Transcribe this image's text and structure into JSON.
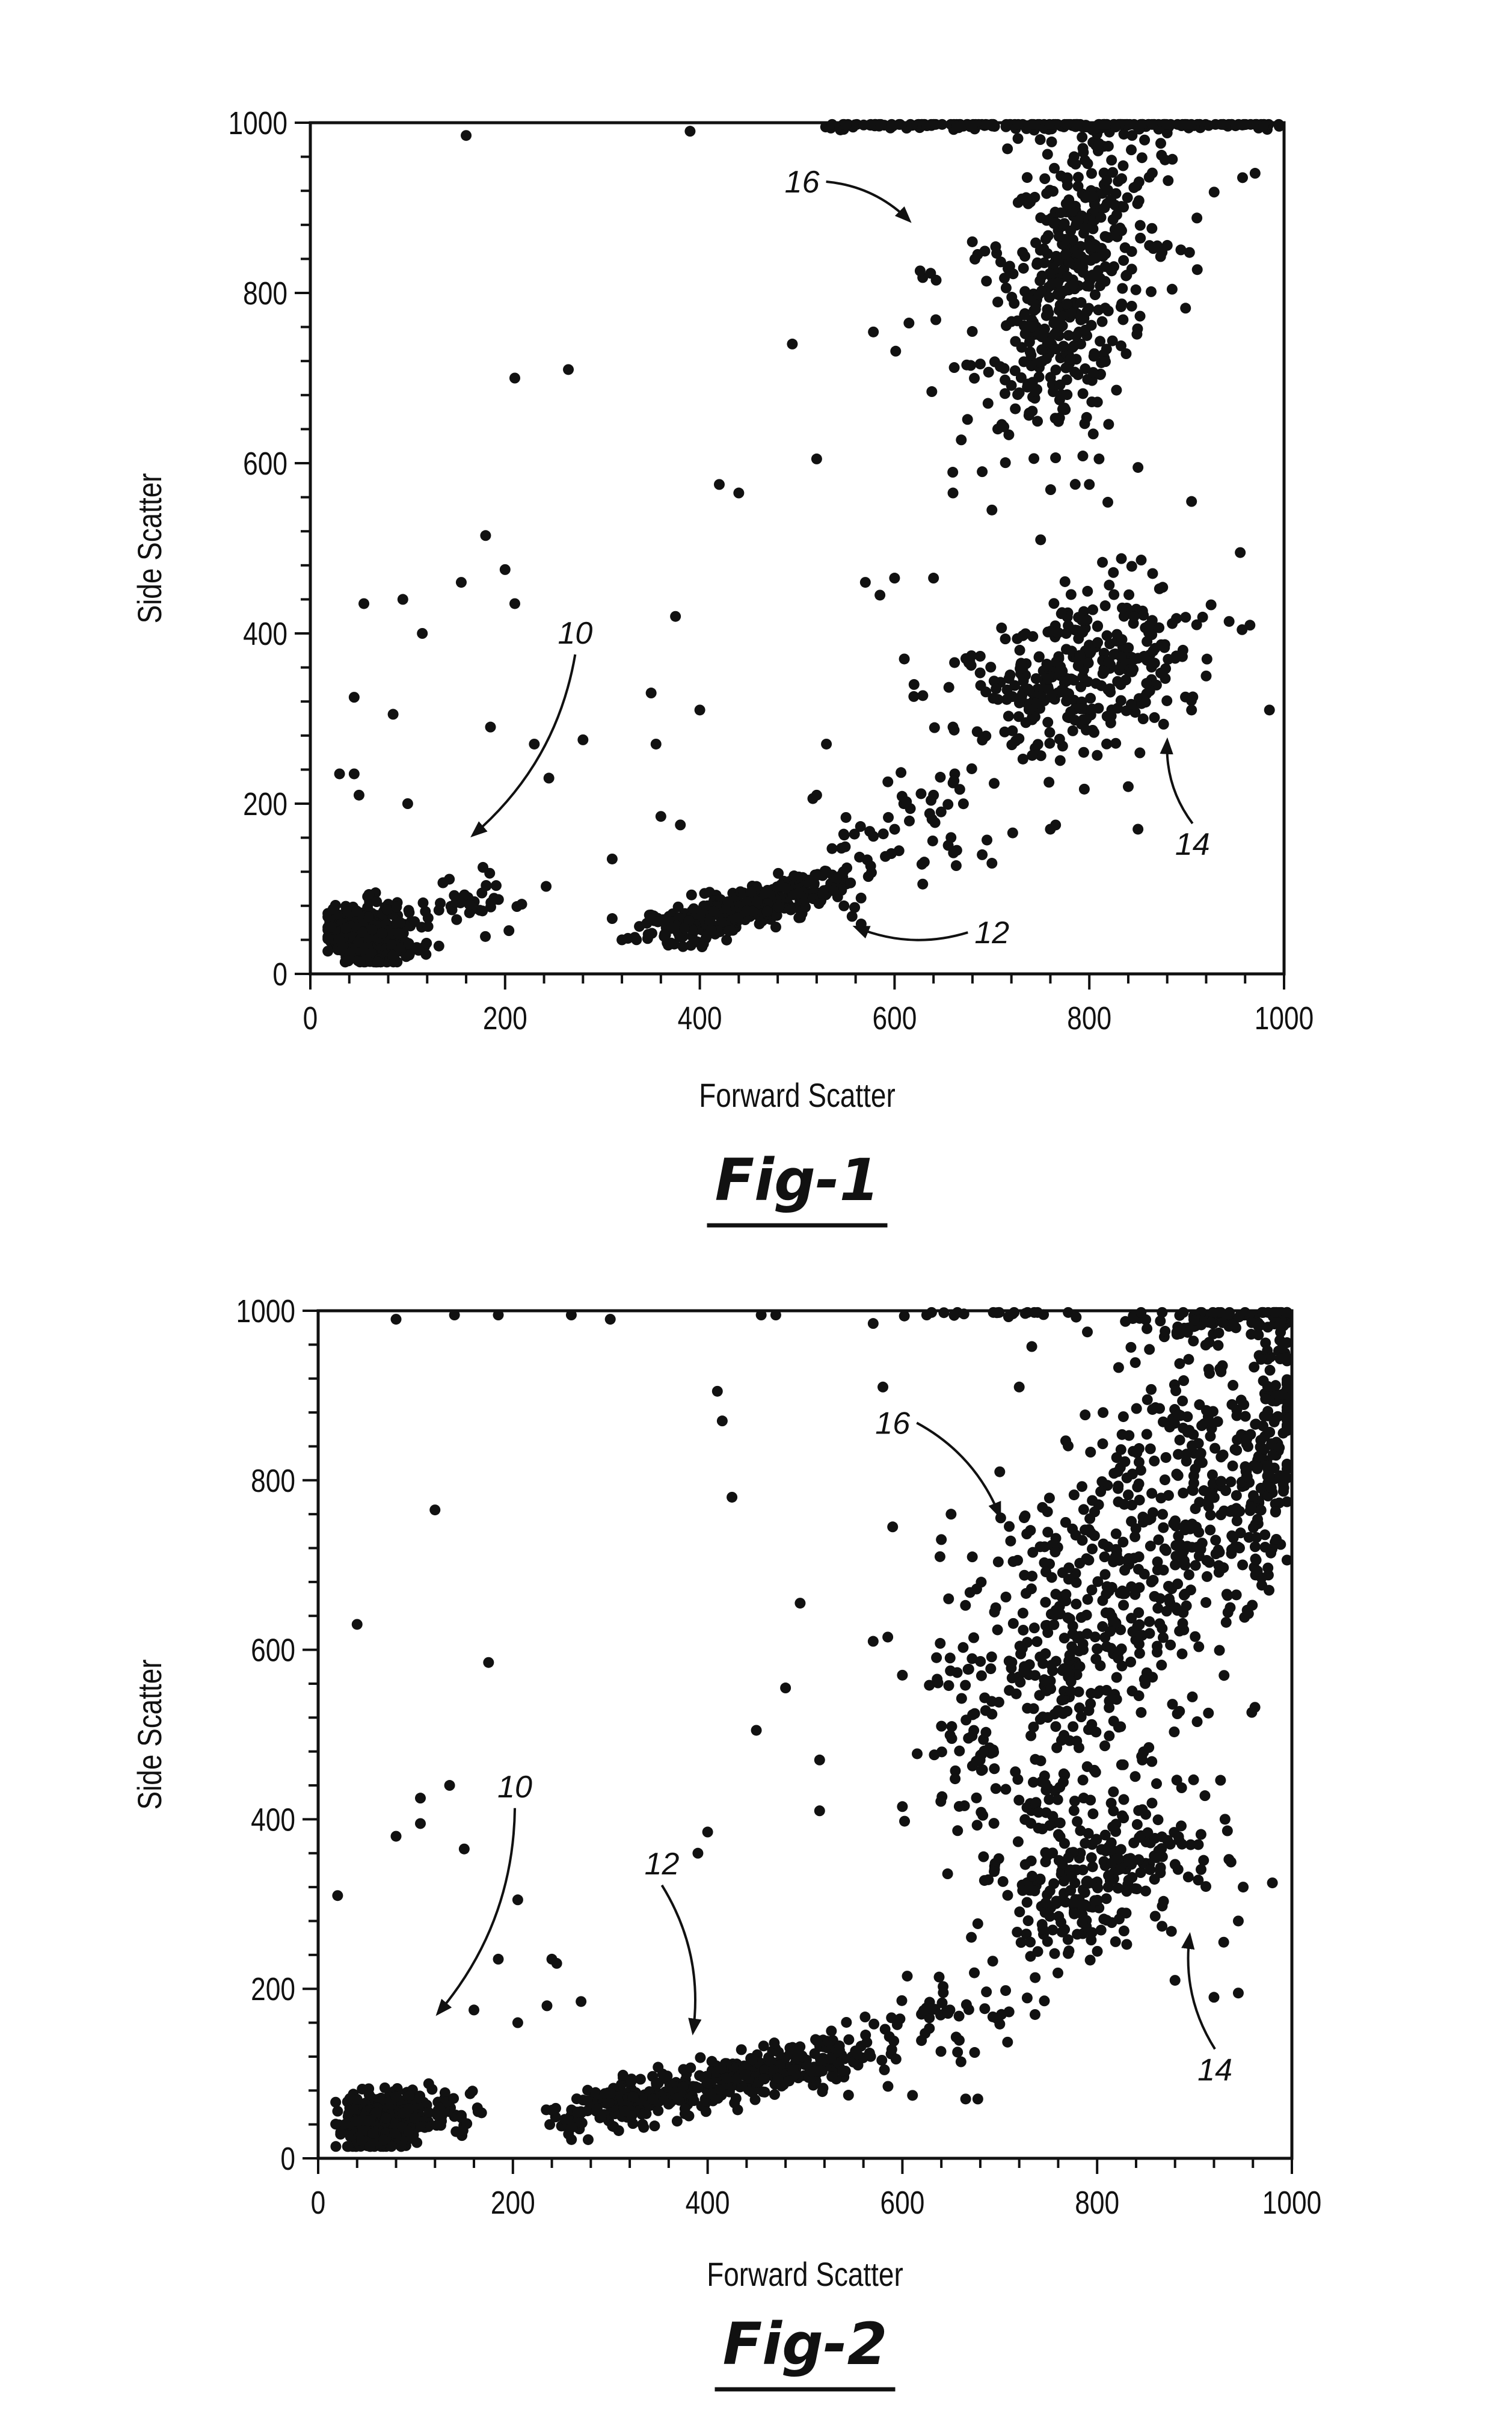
{
  "chart_data": [
    {
      "type": "scatter",
      "caption": "Fig-1",
      "xlabel": "Forward Scatter",
      "ylabel": "Side Scatter",
      "xlim": [
        0,
        1000
      ],
      "ylim": [
        0,
        1000
      ],
      "xticks": [
        "0",
        "200",
        "400",
        "600",
        "800",
        "1000"
      ],
      "yticks": [
        "0",
        "200",
        "400",
        "600",
        "800",
        "1000"
      ],
      "grid": false,
      "marker_color": "#111111",
      "clusters": [
        {
          "label": "10",
          "from": [
            35,
            45
          ],
          "to": [
            85,
            45
          ],
          "spread": [
            14,
            18
          ],
          "n": 350
        },
        {
          "label": "10",
          "from": [
            90,
            50
          ],
          "to": [
            200,
            100
          ],
          "spread": [
            22,
            16
          ],
          "n": 60
        },
        {
          "label": "12",
          "from": [
            360,
            50
          ],
          "to": [
            540,
            110
          ],
          "spread": [
            18,
            13
          ],
          "n": 350
        },
        {
          "label": "12",
          "from": [
            540,
            110
          ],
          "to": [
            690,
            230
          ],
          "spread": [
            25,
            35
          ],
          "n": 60
        },
        {
          "label": "14",
          "from": [
            720,
            330
          ],
          "to": [
            860,
            390
          ],
          "spread": [
            38,
            42
          ],
          "n": 250
        },
        {
          "label": "14",
          "from": [
            700,
            260
          ],
          "to": [
            900,
            420
          ],
          "spread": [
            50,
            55
          ],
          "n": 80
        },
        {
          "label": "16",
          "from": [
            745,
            680
          ],
          "to": [
            820,
            960
          ],
          "spread": [
            32,
            55
          ],
          "n": 420
        },
        {
          "label": "16",
          "from": [
            630,
            720
          ],
          "to": [
            900,
            900
          ],
          "spread": [
            55,
            70
          ],
          "n": 80
        },
        {
          "label": "16",
          "from": [
            540,
            998
          ],
          "to": [
            990,
            998
          ],
          "spread": [
            20,
            3
          ],
          "n": 220
        }
      ],
      "outliers": [
        [
          160,
          985
        ],
        [
          390,
          990
        ],
        [
          210,
          700
        ],
        [
          265,
          710
        ],
        [
          495,
          740
        ],
        [
          520,
          605
        ],
        [
          420,
          575
        ],
        [
          440,
          565
        ],
        [
          375,
          420
        ],
        [
          350,
          330
        ],
        [
          180,
          515
        ],
        [
          200,
          475
        ],
        [
          155,
          460
        ],
        [
          210,
          435
        ],
        [
          95,
          440
        ],
        [
          55,
          435
        ],
        [
          115,
          400
        ],
        [
          45,
          325
        ],
        [
          85,
          305
        ],
        [
          185,
          290
        ],
        [
          230,
          270
        ],
        [
          280,
          275
        ],
        [
          245,
          230
        ],
        [
          30,
          235
        ],
        [
          45,
          235
        ],
        [
          50,
          210
        ],
        [
          100,
          200
        ],
        [
          600,
          465
        ],
        [
          640,
          465
        ],
        [
          585,
          445
        ],
        [
          610,
          370
        ],
        [
          660,
          565
        ],
        [
          690,
          590
        ],
        [
          700,
          545
        ],
        [
          750,
          510
        ],
        [
          800,
          575
        ],
        [
          810,
          605
        ],
        [
          850,
          595
        ],
        [
          905,
          555
        ],
        [
          955,
          495
        ],
        [
          985,
          310
        ],
        [
          850,
          170
        ],
        [
          760,
          170
        ],
        [
          660,
          290
        ],
        [
          620,
          340
        ],
        [
          570,
          460
        ],
        [
          530,
          270
        ],
        [
          400,
          310
        ],
        [
          355,
          270
        ],
        [
          360,
          185
        ],
        [
          380,
          175
        ],
        [
          310,
          135
        ],
        [
          310,
          65
        ],
        [
          320,
          40
        ],
        [
          520,
          210
        ],
        [
          640,
          210
        ],
        [
          690,
          140
        ],
        [
          700,
          130
        ],
        [
          840,
          220
        ],
        [
          905,
          310
        ],
        [
          920,
          350
        ]
      ],
      "annotations": [
        {
          "text": "16",
          "label_at": [
            505,
            918
          ],
          "arrow_to": [
            615,
            885
          ]
        },
        {
          "text": "10",
          "label_at": [
            272,
            388
          ],
          "arrow_to": [
            167,
            163
          ]
        },
        {
          "text": "12",
          "label_at": [
            700,
            36
          ],
          "arrow_to": [
            560,
            55
          ]
        },
        {
          "text": "14",
          "label_at": [
            906,
            140
          ],
          "arrow_to": [
            880,
            274
          ]
        }
      ]
    },
    {
      "type": "scatter",
      "caption": "Fig-2",
      "xlabel": "Forward Scatter",
      "ylabel": "Side Scatter",
      "xlim": [
        0,
        1000
      ],
      "ylim": [
        0,
        1000
      ],
      "xticks": [
        "0",
        "200",
        "400",
        "600",
        "800",
        "1000"
      ],
      "yticks": [
        "0",
        "200",
        "400",
        "600",
        "800",
        "1000"
      ],
      "grid": false,
      "marker_color": "#111111",
      "clusters": [
        {
          "label": "10",
          "from": [
            35,
            45
          ],
          "to": [
            100,
            45
          ],
          "spread": [
            12,
            18
          ],
          "n": 350
        },
        {
          "label": "10",
          "from": [
            100,
            50
          ],
          "to": [
            150,
            60
          ],
          "spread": [
            14,
            12
          ],
          "n": 40
        },
        {
          "label": "12",
          "from": [
            260,
            50
          ],
          "to": [
            550,
            125
          ],
          "spread": [
            20,
            13
          ],
          "n": 420
        },
        {
          "label": "12",
          "from": [
            550,
            130
          ],
          "to": [
            720,
            190
          ],
          "spread": [
            30,
            35
          ],
          "n": 60
        },
        {
          "label": "16",
          "from": [
            700,
            480
          ],
          "to": [
            960,
            880
          ],
          "spread": [
            55,
            90
          ],
          "n": 750
        },
        {
          "label": "16",
          "from": [
            880,
            990
          ],
          "to": [
            990,
            990
          ],
          "spread": [
            30,
            8
          ],
          "n": 80
        },
        {
          "label": "16",
          "from": [
            965,
            700
          ],
          "to": [
            985,
            1000
          ],
          "spread": [
            10,
            60
          ],
          "n": 100
        },
        {
          "label": "14",
          "from": [
            720,
            300
          ],
          "to": [
            880,
            380
          ],
          "spread": [
            40,
            42
          ],
          "n": 260
        },
        {
          "label": "16",
          "from": [
            620,
            998
          ],
          "to": [
            760,
            998
          ],
          "spread": [
            25,
            3
          ],
          "n": 20
        }
      ],
      "outliers": [
        [
          80,
          990
        ],
        [
          140,
          995
        ],
        [
          185,
          995
        ],
        [
          260,
          995
        ],
        [
          300,
          990
        ],
        [
          455,
          995
        ],
        [
          470,
          995
        ],
        [
          570,
          985
        ],
        [
          625,
          995
        ],
        [
          40,
          630
        ],
        [
          120,
          765
        ],
        [
          175,
          585
        ],
        [
          410,
          905
        ],
        [
          415,
          870
        ],
        [
          425,
          780
        ],
        [
          20,
          310
        ],
        [
          105,
          425
        ],
        [
          105,
          395
        ],
        [
          80,
          380
        ],
        [
          135,
          440
        ],
        [
          150,
          365
        ],
        [
          205,
          305
        ],
        [
          185,
          235
        ],
        [
          240,
          235
        ],
        [
          245,
          230
        ],
        [
          235,
          180
        ],
        [
          270,
          185
        ],
        [
          205,
          160
        ],
        [
          160,
          175
        ],
        [
          400,
          385
        ],
        [
          390,
          360
        ],
        [
          450,
          505
        ],
        [
          480,
          555
        ],
        [
          495,
          655
        ],
        [
          515,
          470
        ],
        [
          515,
          410
        ],
        [
          570,
          610
        ],
        [
          585,
          615
        ],
        [
          580,
          910
        ],
        [
          590,
          745
        ],
        [
          600,
          570
        ],
        [
          600,
          415
        ],
        [
          720,
          910
        ],
        [
          700,
          810
        ],
        [
          650,
          760
        ],
        [
          640,
          730
        ],
        [
          790,
          975
        ],
        [
          950,
          320
        ],
        [
          930,
          255
        ],
        [
          945,
          280
        ],
        [
          920,
          190
        ],
        [
          945,
          195
        ],
        [
          980,
          325
        ],
        [
          880,
          210
        ],
        [
          665,
          70
        ],
        [
          605,
          215
        ],
        [
          545,
          140
        ]
      ],
      "annotations": [
        {
          "text": "10",
          "label_at": [
            202,
            426
          ],
          "arrow_to": [
            123,
            171
          ]
        },
        {
          "text": "12",
          "label_at": [
            353,
            335
          ],
          "arrow_to": [
            385,
            149
          ]
        },
        {
          "text": "16",
          "label_at": [
            590,
            855
          ],
          "arrow_to": [
            700,
            758
          ]
        },
        {
          "text": "14",
          "label_at": [
            921,
            92
          ],
          "arrow_to": [
            895,
            263
          ]
        }
      ]
    }
  ]
}
